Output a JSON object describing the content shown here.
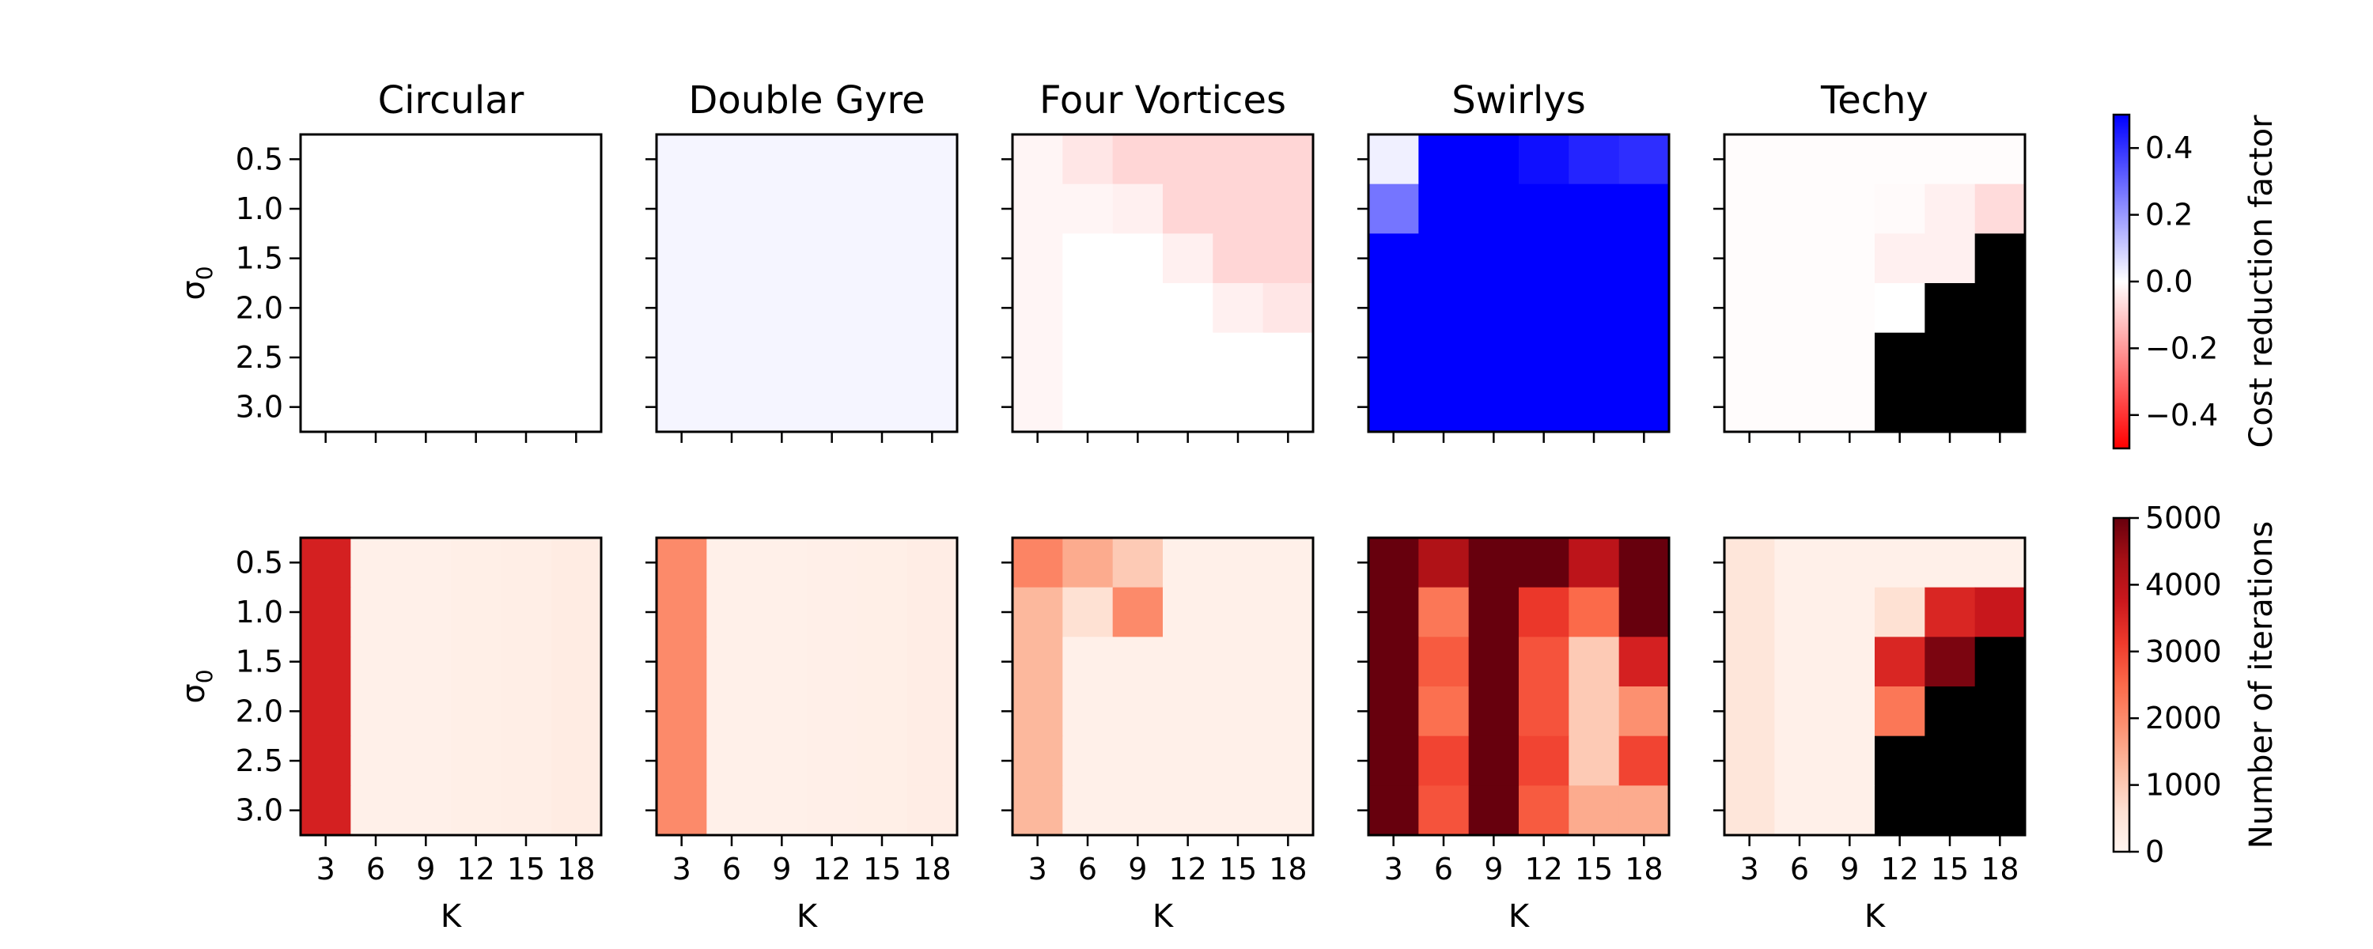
{
  "colors": {
    "cost_neg": "#ff0000",
    "cost_mid": "#ffffff",
    "cost_pos": "#0000ff",
    "iter_low": "#fff5f0",
    "iter_high": "#67000d",
    "not_run": "#000000"
  },
  "chart_data": {
    "type": "heatmap",
    "row_labels": [
      "0.5",
      "1.0",
      "1.5",
      "2.0",
      "2.5",
      "3.0"
    ],
    "col_labels": [
      "3",
      "6",
      "9",
      "12",
      "15",
      "18"
    ],
    "x_tick_labels": [
      "3",
      "6",
      "9",
      "12",
      "15",
      "18"
    ],
    "ylabel": "σ",
    "ylabel_sub": "0",
    "xlabel": "K",
    "panels": [
      "Circular",
      "Double Gyre",
      "Four Vortices",
      "Swirlys",
      "Techy"
    ],
    "cost_colorbar": {
      "label": "Cost reduction factor",
      "range": [
        -0.5,
        0.5
      ],
      "ticks": [
        0.4,
        0.2,
        0.0,
        -0.2,
        -0.4
      ],
      "tick_labels": [
        "0.4",
        "0.2",
        "0.0",
        "−0.2",
        "−0.4"
      ],
      "colormap": "bwr_r"
    },
    "iter_colorbar": {
      "label": "Number of iterations",
      "range": [
        0,
        5000
      ],
      "ticks": [
        5000,
        4000,
        3000,
        2000,
        1000,
        0
      ],
      "tick_labels": [
        "5000",
        "4000",
        "3000",
        "2000",
        "1000",
        "0"
      ],
      "colormap": "Reds"
    },
    "cost_reduction": {
      "Circular": [
        [
          0,
          0,
          0,
          0,
          0,
          0
        ],
        [
          0,
          0,
          0,
          0,
          0,
          0
        ],
        [
          0,
          0,
          0,
          0,
          0,
          0
        ],
        [
          0,
          0,
          0,
          0,
          0,
          0
        ],
        [
          0,
          0,
          0,
          0,
          0,
          0
        ],
        [
          0,
          0,
          0,
          0,
          0,
          0
        ]
      ],
      "Double Gyre": [
        [
          0.02,
          0.02,
          0.02,
          0.02,
          0.02,
          0.02
        ],
        [
          0.02,
          0.02,
          0.02,
          0.02,
          0.02,
          0.02
        ],
        [
          0.02,
          0.02,
          0.02,
          0.02,
          0.02,
          0.02
        ],
        [
          0.02,
          0.02,
          0.02,
          0.02,
          0.02,
          0.02
        ],
        [
          0.02,
          0.02,
          0.02,
          0.02,
          0.02,
          0.02
        ],
        [
          0.02,
          0.02,
          0.02,
          0.02,
          0.02,
          0.02
        ]
      ],
      "Four Vortices": [
        [
          -0.02,
          -0.05,
          -0.08,
          -0.08,
          -0.08,
          -0.08
        ],
        [
          -0.02,
          -0.02,
          -0.03,
          -0.08,
          -0.08,
          -0.08
        ],
        [
          -0.02,
          0,
          0,
          -0.03,
          -0.08,
          -0.08
        ],
        [
          -0.02,
          0,
          0,
          0,
          -0.03,
          -0.05
        ],
        [
          -0.02,
          0,
          0,
          0,
          0,
          0
        ],
        [
          -0.02,
          0,
          0,
          0,
          0,
          0
        ]
      ],
      "Swirlys": [
        [
          0.03,
          0.5,
          0.5,
          0.47,
          0.43,
          0.41
        ],
        [
          0.27,
          0.5,
          0.5,
          0.5,
          0.5,
          0.5
        ],
        [
          0.5,
          0.5,
          0.5,
          0.5,
          0.5,
          0.5
        ],
        [
          0.5,
          0.5,
          0.5,
          0.5,
          0.5,
          0.5
        ],
        [
          0.5,
          0.5,
          0.5,
          0.5,
          0.5,
          0.5
        ],
        [
          0.5,
          0.5,
          0.5,
          0.5,
          0.5,
          0.5
        ]
      ],
      "Techy": [
        [
          -0.005,
          -0.005,
          -0.005,
          -0.005,
          -0.005,
          -0.005
        ],
        [
          -0.005,
          -0.005,
          -0.005,
          -0.01,
          -0.03,
          -0.07
        ],
        [
          -0.005,
          -0.005,
          -0.005,
          -0.03,
          -0.03,
          null
        ],
        [
          -0.005,
          -0.005,
          -0.005,
          0,
          null,
          null
        ],
        [
          -0.005,
          -0.005,
          -0.005,
          null,
          null,
          null
        ],
        [
          -0.005,
          -0.005,
          -0.005,
          null,
          null,
          null
        ]
      ]
    },
    "iterations": {
      "Circular": [
        [
          3600,
          150,
          150,
          180,
          200,
          280
        ],
        [
          3600,
          150,
          150,
          180,
          200,
          280
        ],
        [
          3600,
          150,
          150,
          180,
          200,
          280
        ],
        [
          3600,
          150,
          150,
          180,
          200,
          280
        ],
        [
          3600,
          150,
          150,
          180,
          200,
          280
        ],
        [
          3600,
          150,
          150,
          180,
          200,
          280
        ]
      ],
      "Double Gyre": [
        [
          2000,
          150,
          150,
          170,
          190,
          230
        ],
        [
          2000,
          150,
          150,
          170,
          190,
          230
        ],
        [
          2000,
          150,
          150,
          170,
          190,
          230
        ],
        [
          2000,
          150,
          150,
          170,
          190,
          230
        ],
        [
          2000,
          150,
          150,
          170,
          190,
          230
        ],
        [
          2000,
          150,
          150,
          170,
          190,
          230
        ]
      ],
      "Four Vortices": [
        [
          2100,
          1500,
          1000,
          150,
          150,
          150
        ],
        [
          1300,
          600,
          2000,
          150,
          150,
          150
        ],
        [
          1300,
          150,
          150,
          150,
          150,
          150
        ],
        [
          1300,
          150,
          150,
          150,
          150,
          150
        ],
        [
          1300,
          150,
          150,
          150,
          150,
          150
        ],
        [
          1300,
          150,
          150,
          150,
          150,
          150
        ]
      ],
      "Swirlys": [
        [
          5000,
          4200,
          5000,
          5000,
          4000,
          5000
        ],
        [
          5000,
          2300,
          5000,
          3200,
          2500,
          5000
        ],
        [
          5000,
          2700,
          5000,
          2800,
          1000,
          3600
        ],
        [
          5000,
          2400,
          5000,
          2800,
          1000,
          1900
        ],
        [
          5000,
          3000,
          5000,
          3000,
          1000,
          3000
        ],
        [
          5000,
          2800,
          5000,
          2700,
          1500,
          1500
        ]
      ],
      "Techy": [
        [
          450,
          150,
          150,
          150,
          150,
          150
        ],
        [
          450,
          150,
          150,
          600,
          3500,
          3800
        ],
        [
          450,
          150,
          150,
          3500,
          4800,
          null
        ],
        [
          450,
          150,
          150,
          2300,
          null,
          null
        ],
        [
          450,
          150,
          150,
          null,
          null,
          null
        ],
        [
          450,
          150,
          150,
          null,
          null,
          null
        ]
      ]
    }
  }
}
